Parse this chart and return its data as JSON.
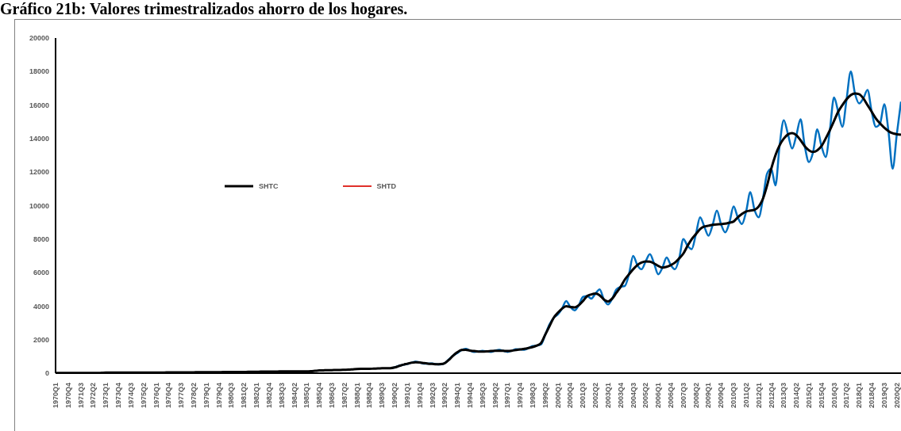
{
  "chart_data": {
    "type": "line",
    "title": "Gráfico 21b: Valores trimestralizados ahorro de los hogares.",
    "categories": [
      "1970Q1",
      null,
      null,
      "1970Q4",
      null,
      null,
      "1971Q3",
      null,
      null,
      "1972Q2",
      null,
      null,
      "1973Q1",
      null,
      null,
      "1973Q4",
      null,
      null,
      "1974Q3",
      null,
      null,
      "1975Q2",
      null,
      null,
      "1976Q1",
      null,
      null,
      "1976Q4",
      null,
      null,
      "1977Q3",
      null,
      null,
      "1978Q2",
      null,
      null,
      "1979Q1",
      null,
      null,
      "1979Q4",
      null,
      null,
      "1980Q3",
      null,
      null,
      "1981Q2",
      null,
      null,
      "1982Q1",
      null,
      null,
      "1982Q4",
      null,
      null,
      "1983Q3",
      null,
      null,
      "1984Q2",
      null,
      null,
      "1985Q1",
      null,
      null,
      "1985Q4",
      null,
      null,
      "1986Q3",
      null,
      null,
      "1987Q2",
      null,
      null,
      "1988Q1",
      null,
      null,
      "1988Q4",
      null,
      null,
      "1989Q3",
      null,
      null,
      "1990Q2",
      null,
      null,
      "1991Q1",
      null,
      null,
      "1991Q4",
      null,
      null,
      "1992Q3",
      null,
      null,
      "1993Q2",
      null,
      null,
      "1994Q1",
      null,
      null,
      "1994Q4",
      null,
      null,
      "1995Q3",
      null,
      null,
      "1996Q2",
      null,
      null,
      "1997Q1",
      null,
      null,
      "1997Q4",
      null,
      null,
      "1998Q3",
      null,
      null,
      "1999Q2",
      null,
      null,
      "2000Q1",
      null,
      null,
      "2000Q4",
      null,
      null,
      "2001Q3",
      null,
      null,
      "2002Q2",
      null,
      null,
      "2003Q1",
      null,
      null,
      "2003Q4",
      null,
      null,
      "2004Q3",
      null,
      null,
      "2005Q2",
      null,
      null,
      "2006Q1",
      null,
      null,
      "2006Q4",
      null,
      null,
      "2007Q3",
      null,
      null,
      "2008Q2",
      null,
      null,
      "2009Q1",
      null,
      null,
      "2009Q4",
      null,
      null,
      "2010Q3",
      null,
      null,
      "2011Q2",
      null,
      null,
      "2012Q1",
      null,
      null,
      "2012Q4",
      null,
      null,
      "2013Q3",
      null,
      null,
      "2014Q2",
      null,
      null,
      "2015Q1",
      null,
      null,
      "2015Q4",
      null,
      null,
      "2016Q3",
      null,
      null,
      "2017Q2",
      null,
      null,
      "2018Q1",
      null,
      null,
      "2018Q4",
      null,
      null,
      "2019Q3",
      null,
      null,
      "2020Q2",
      null
    ],
    "series": [
      {
        "color": "#0070c0",
        "values": [
          null,
          null,
          null,
          null,
          null,
          null,
          null,
          null,
          null,
          null,
          null,
          null,
          null,
          null,
          null,
          null,
          null,
          null,
          null,
          null,
          null,
          null,
          null,
          null,
          null,
          null,
          null,
          null,
          null,
          null,
          null,
          null,
          null,
          null,
          null,
          null,
          null,
          null,
          null,
          null,
          null,
          null,
          null,
          null,
          null,
          null,
          null,
          null,
          null,
          null,
          null,
          null,
          null,
          null,
          null,
          null,
          null,
          null,
          null,
          null,
          null,
          null,
          null,
          null,
          null,
          null,
          null,
          null,
          null,
          null,
          null,
          null,
          null,
          null,
          null,
          null,
          null,
          null,
          null,
          null,
          290,
          340,
          440,
          500,
          540,
          620,
          680,
          640,
          570,
          570,
          580,
          530,
          520,
          600,
          830,
          1050,
          1200,
          1380,
          1450,
          1350,
          1270,
          1290,
          1340,
          1300,
          1270,
          1340,
          1390,
          1330,
          1270,
          1340,
          1430,
          1420,
          1400,
          1500,
          1620,
          1650,
          1720,
          2300,
          2900,
          3300,
          3500,
          3850,
          4300,
          3950,
          3750,
          4050,
          4550,
          4600,
          4450,
          4750,
          5000,
          4400,
          4100,
          4450,
          5000,
          5150,
          5200,
          5900,
          7000,
          6450,
          6200,
          6670,
          7100,
          6550,
          5900,
          6300,
          6900,
          6450,
          6200,
          6850,
          8000,
          7600,
          7400,
          8300,
          9300,
          8750,
          8200,
          8850,
          9700,
          8890,
          8400,
          8980,
          9950,
          9300,
          8900,
          9650,
          10800,
          9750,
          9300,
          10400,
          11900,
          12200,
          11200,
          13600,
          15100,
          14250,
          13400,
          14200,
          15150,
          13550,
          12600,
          13200,
          14550,
          13550,
          12900,
          14500,
          16450,
          15600,
          14700,
          16350,
          18000,
          16690,
          16100,
          16400,
          16900,
          15600,
          14700,
          14900,
          16050,
          14450,
          12200,
          14260,
          16200
        ]
      },
      {
        "name": "SHTC",
        "color": "#000000",
        "values": [
          10,
          10,
          10,
          10,
          10,
          10,
          10,
          10,
          10,
          10,
          10,
          20,
          30,
          30,
          30,
          30,
          30,
          30,
          30,
          40,
          40,
          40,
          40,
          40,
          40,
          40,
          40,
          50,
          50,
          50,
          50,
          50,
          50,
          50,
          60,
          60,
          60,
          60,
          60,
          60,
          70,
          70,
          70,
          70,
          70,
          70,
          80,
          80,
          80,
          90,
          90,
          100,
          100,
          100,
          110,
          110,
          110,
          110,
          110,
          110,
          110,
          120,
          140,
          160,
          170,
          180,
          180,
          190,
          190,
          200,
          210,
          230,
          250,
          260,
          260,
          260,
          270,
          280,
          290,
          300,
          300,
          340,
          420,
          500,
          560,
          620,
          650,
          640,
          600,
          570,
          550,
          530,
          540,
          600,
          800,
          1050,
          1250,
          1380,
          1400,
          1350,
          1320,
          1290,
          1290,
          1300,
          1320,
          1340,
          1340,
          1330,
          1320,
          1340,
          1380,
          1420,
          1450,
          1500,
          1560,
          1650,
          1800,
          2300,
          2800,
          3300,
          3600,
          3850,
          4000,
          3950,
          3920,
          4050,
          4300,
          4600,
          4700,
          4750,
          4650,
          4400,
          4280,
          4450,
          4800,
          5150,
          5580,
          5900,
          6200,
          6450,
          6600,
          6670,
          6650,
          6550,
          6400,
          6300,
          6350,
          6450,
          6600,
          6850,
          7140,
          7600,
          8000,
          8300,
          8600,
          8750,
          8800,
          8850,
          8880,
          8890,
          8920,
          8980,
          9050,
          9300,
          9500,
          9650,
          9700,
          9750,
          9950,
          10400,
          11200,
          12200,
          13000,
          13600,
          14000,
          14250,
          14330,
          14200,
          13900,
          13550,
          13300,
          13200,
          13300,
          13550,
          14000,
          14500,
          15050,
          15600,
          16000,
          16350,
          16600,
          16690,
          16650,
          16400,
          16000,
          15600,
          15200,
          14900,
          14650,
          14450,
          14320,
          14260,
          14230
        ]
      },
      {
        "name": "SHTD",
        "color": "#e0302a",
        "values": [
          null,
          null,
          null,
          null,
          null,
          null,
          null,
          null,
          null,
          null,
          null,
          null,
          null,
          null,
          null,
          null,
          null,
          null,
          null,
          null,
          null,
          null,
          null,
          null,
          null,
          null,
          null,
          null,
          null,
          null,
          null,
          null,
          null,
          null,
          null,
          null,
          null,
          null,
          null,
          null,
          null,
          null,
          null,
          null,
          null,
          null,
          null,
          null,
          null,
          null,
          null,
          null,
          null,
          null,
          null,
          null,
          null,
          null,
          null,
          null,
          null,
          null,
          null,
          null,
          null,
          null,
          null,
          null,
          null,
          null,
          null,
          null,
          null,
          null,
          null,
          null,
          null,
          null,
          null,
          null,
          null,
          null,
          null,
          null,
          null,
          null,
          null,
          null,
          null,
          null,
          null,
          null,
          null,
          null,
          null,
          null,
          null,
          null,
          null,
          null,
          null,
          null,
          null,
          null,
          null,
          null,
          null,
          null,
          null,
          null,
          null,
          null,
          null,
          null,
          null,
          null,
          null,
          null,
          null,
          null,
          null,
          null,
          null,
          null,
          null,
          null,
          null,
          null,
          null,
          null,
          null,
          null,
          null,
          null,
          null,
          null,
          null,
          null,
          null,
          null,
          null,
          null,
          null,
          null,
          null,
          null,
          null,
          null,
          null,
          null,
          null,
          null,
          null,
          null,
          null,
          null,
          null,
          null,
          null,
          null,
          null,
          null,
          null,
          null,
          null,
          null,
          null,
          null,
          null,
          null,
          null,
          null,
          null,
          null,
          null,
          null,
          null,
          null,
          null,
          null,
          null,
          null,
          null,
          null,
          null,
          null,
          null,
          null,
          null,
          null,
          null,
          null,
          null,
          null,
          null,
          null,
          null,
          null,
          null,
          null,
          null,
          null,
          null
        ]
      }
    ],
    "ylim": [
      0,
      20000
    ],
    "yticks": [
      0,
      2000,
      4000,
      6000,
      8000,
      10000,
      12000,
      14000,
      16000,
      18000,
      20000
    ],
    "legend": "left",
    "grid": false,
    "marker": "none",
    "line_style": "solid"
  }
}
